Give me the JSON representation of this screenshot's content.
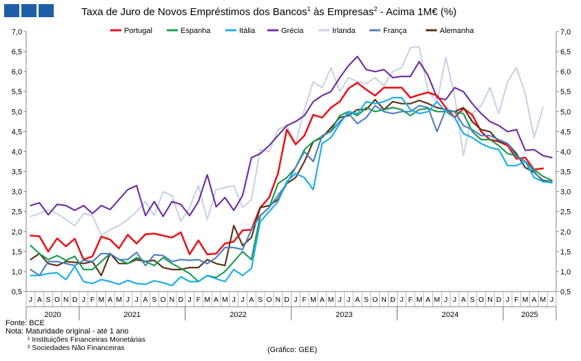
{
  "header": {
    "title_text": "Taxa de Juro de Novos Empréstimos  dos Bancos",
    "title_sup1": "1",
    "title_mid": " às Empresas",
    "title_sup2": "2",
    "title_tail": " - Acima 1M€ (%)"
  },
  "footer": {
    "source": "Fonte: BCE",
    "note": "Nota: Maturidade original - até 1 ano",
    "fn1": "¹ Instituições Financeiras Monetárias",
    "fn2": "² Sociedades Não Financeiras",
    "credit": "(Gráfico: GEE)"
  },
  "chart_data": {
    "type": "line",
    "title": "Taxa de Juro de Novos Empréstimos dos Bancos¹ às Empresas² - Acima 1M€ (%)",
    "ylim": [
      0.5,
      7.0
    ],
    "y_ticks": [
      "7,0",
      "6,5",
      "6,0",
      "5,5",
      "5,0",
      "4,5",
      "4,0",
      "3,5",
      "3,0",
      "2,5",
      "2,0",
      "1,5",
      "1,0",
      "0,5"
    ],
    "grid": false,
    "legend_position": "top",
    "x": [
      "J",
      "A",
      "S",
      "O",
      "N",
      "D",
      "J",
      "F",
      "M",
      "A",
      "M",
      "J",
      "J",
      "A",
      "S",
      "O",
      "N",
      "D",
      "J",
      "F",
      "M",
      "A",
      "M",
      "J",
      "J",
      "A",
      "S",
      "O",
      "N",
      "D",
      "J",
      "F",
      "M",
      "A",
      "M",
      "J",
      "J",
      "A",
      "S",
      "O",
      "N",
      "D",
      "J",
      "F",
      "M",
      "A",
      "M",
      "J",
      "J",
      "A",
      "S",
      "O",
      "N",
      "D",
      "J",
      "F",
      "M",
      "A",
      "M",
      "J"
    ],
    "years": [
      {
        "label": "2020",
        "start": 0,
        "end": 6
      },
      {
        "label": "2021",
        "start": 6,
        "end": 18
      },
      {
        "label": "2022",
        "start": 18,
        "end": 30
      },
      {
        "label": "2023",
        "start": 30,
        "end": 42
      },
      {
        "label": "2024",
        "start": 42,
        "end": 54
      },
      {
        "label": "2025",
        "start": 54,
        "end": 60
      }
    ],
    "series": [
      {
        "name": "Irlanda",
        "color": "#c8d4e4",
        "width": 2.2,
        "values": [
          2.38,
          2.45,
          2.55,
          2.45,
          2.3,
          2.15,
          2.45,
          2.4,
          1.9,
          2.05,
          2.15,
          2.3,
          2.5,
          2.75,
          2.4,
          3.0,
          2.9,
          2.25,
          2.6,
          3.15,
          2.3,
          3.05,
          3.1,
          3.15,
          2.6,
          2.8,
          4.05,
          4.0,
          4.55,
          4.65,
          4.2,
          5.05,
          5.75,
          5.6,
          6.1,
          5.5,
          5.85,
          5.75,
          5.7,
          5.85,
          5.65,
          6.0,
          6.1,
          6.6,
          6.62,
          5.5,
          5.25,
          6.35,
          5.4,
          3.9,
          4.95,
          5.15,
          5.6,
          4.95,
          5.75,
          6.1,
          5.45,
          4.35,
          5.1,
          null
        ]
      },
      {
        "name": "Grécia",
        "color": "#7030a0",
        "width": 2.2,
        "values": [
          2.65,
          2.72,
          2.42,
          2.68,
          2.65,
          2.53,
          2.65,
          2.45,
          2.65,
          2.55,
          2.8,
          3.05,
          3.15,
          2.4,
          2.75,
          2.38,
          2.75,
          2.68,
          2.4,
          2.75,
          3.42,
          2.62,
          2.85,
          2.53,
          2.9,
          3.85,
          3.95,
          4.15,
          4.4,
          4.65,
          4.75,
          4.9,
          5.25,
          5.4,
          5.5,
          5.85,
          6.15,
          6.38,
          6.05,
          6.0,
          6.05,
          5.85,
          5.88,
          5.88,
          6.25,
          5.9,
          5.35,
          5.3,
          5.6,
          5.5,
          5.2,
          4.95,
          4.75,
          4.65,
          4.5,
          4.55,
          4.03,
          4.05,
          3.9,
          3.85
        ]
      },
      {
        "name": "Portugal",
        "color": "#e8141b",
        "width": 2.6,
        "values": [
          1.9,
          1.88,
          1.5,
          1.83,
          1.63,
          1.82,
          1.3,
          1.38,
          1.87,
          1.8,
          1.58,
          1.92,
          1.7,
          1.93,
          1.95,
          1.9,
          1.85,
          1.98,
          1.43,
          1.78,
          1.43,
          1.45,
          1.7,
          1.75,
          2.03,
          2.05,
          2.6,
          2.85,
          3.45,
          4.55,
          4.18,
          4.4,
          4.92,
          4.85,
          5.1,
          5.25,
          5.58,
          5.72,
          5.55,
          5.4,
          5.6,
          5.6,
          5.6,
          5.35,
          5.42,
          5.48,
          5.4,
          5.1,
          4.85,
          5.08,
          4.92,
          4.5,
          4.3,
          4.25,
          4.15,
          3.82,
          3.85,
          3.55,
          3.58,
          null
        ]
      },
      {
        "name": "Alemanha",
        "color": "#5c3317",
        "width": 2.2,
        "values": [
          1.3,
          1.45,
          1.2,
          1.15,
          1.25,
          1.23,
          1.2,
          1.25,
          0.9,
          1.45,
          1.2,
          1.2,
          1.3,
          1.25,
          1.28,
          1.1,
          1.05,
          1.05,
          1.1,
          1.1,
          1.3,
          1.2,
          1.15,
          2.15,
          1.65,
          1.85,
          2.6,
          2.65,
          2.8,
          3.2,
          3.35,
          3.75,
          4.25,
          4.35,
          4.6,
          4.85,
          4.9,
          5.05,
          5.05,
          5.3,
          5.05,
          5.25,
          5.2,
          5.2,
          5.28,
          5.2,
          5.1,
          5.05,
          5.0,
          5.1,
          4.75,
          4.55,
          4.5,
          4.25,
          4.2,
          3.95,
          3.6,
          3.48,
          3.28,
          3.25
        ]
      },
      {
        "name": "Espanha",
        "color": "#1a9c52",
        "width": 2.2,
        "values": [
          1.65,
          1.45,
          1.3,
          1.4,
          1.28,
          1.38,
          1.05,
          1.05,
          1.25,
          1.45,
          1.3,
          1.2,
          1.35,
          1.25,
          1.15,
          1.35,
          1.2,
          1.08,
          0.95,
          0.75,
          0.9,
          0.85,
          1.0,
          1.25,
          1.5,
          1.3,
          2.4,
          2.6,
          3.2,
          3.35,
          3.6,
          4.05,
          4.25,
          4.38,
          4.52,
          4.9,
          5.0,
          4.9,
          5.1,
          5.0,
          5.05,
          5.1,
          5.05,
          4.9,
          5.05,
          5.08,
          5.0,
          5.0,
          5.0,
          4.95,
          4.5,
          4.3,
          4.3,
          4.15,
          3.95,
          3.9,
          3.75,
          3.55,
          3.38,
          3.28
        ]
      },
      {
        "name": "França",
        "color": "#4f81bd",
        "width": 2.2,
        "values": [
          1.05,
          0.9,
          1.25,
          1.25,
          1.2,
          1.15,
          1.28,
          1.25,
          1.45,
          1.45,
          1.3,
          1.3,
          1.48,
          1.15,
          1.42,
          1.4,
          1.25,
          1.3,
          1.28,
          1.3,
          1.2,
          1.35,
          1.6,
          1.6,
          1.55,
          2.05,
          2.4,
          2.6,
          2.9,
          3.2,
          3.6,
          4.0,
          3.75,
          4.4,
          4.5,
          4.75,
          4.95,
          4.7,
          4.85,
          5.15,
          5.0,
          4.95,
          5.0,
          5.0,
          5.15,
          5.1,
          4.5,
          5.05,
          5.0,
          4.65,
          4.55,
          4.4,
          4.4,
          4.3,
          4.2,
          3.88,
          3.75,
          3.5,
          3.25,
          3.25
        ]
      },
      {
        "name": "Itália",
        "color": "#1aaee8",
        "width": 2.2,
        "values": [
          0.9,
          0.9,
          0.95,
          0.97,
          0.8,
          1.13,
          0.75,
          0.7,
          0.8,
          0.75,
          0.68,
          0.78,
          0.7,
          0.68,
          0.77,
          0.72,
          0.65,
          0.87,
          0.75,
          0.75,
          0.9,
          0.82,
          0.75,
          1.05,
          0.9,
          1.08,
          2.25,
          2.5,
          2.75,
          3.25,
          3.45,
          3.35,
          3.05,
          4.2,
          4.35,
          4.7,
          5.0,
          4.95,
          5.25,
          5.2,
          5.25,
          5.35,
          5.35,
          5.05,
          4.95,
          5.0,
          5.25,
          5.0,
          4.85,
          4.45,
          4.35,
          4.2,
          4.1,
          4.05,
          3.65,
          3.65,
          3.75,
          3.35,
          3.25,
          3.22
        ]
      }
    ],
    "legend_order": [
      "Portugal",
      "Espanha",
      "Itália",
      "Grécia",
      "Irlanda",
      "França",
      "Alemanha"
    ]
  }
}
